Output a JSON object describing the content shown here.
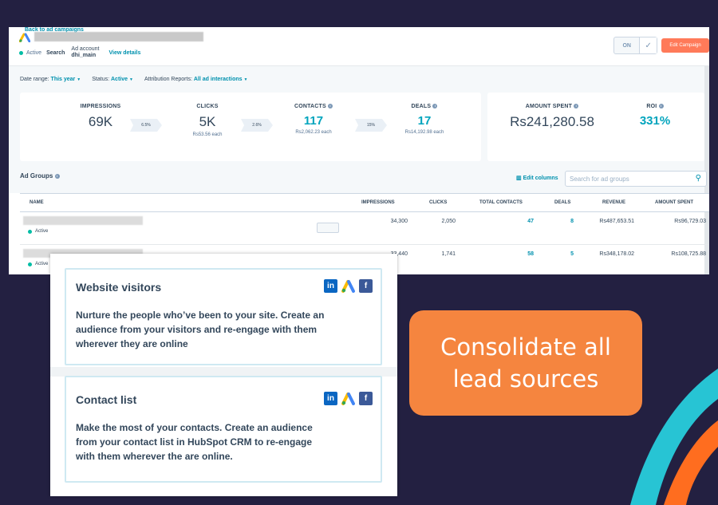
{
  "header": {
    "back_link": "Back to ad campaigns",
    "status": "Active",
    "network": "Search",
    "ad_account_label": "Ad account",
    "ad_account_value": "dhi_main",
    "view_details": "View details",
    "toggle_label": "ON",
    "edit_button": "Edit Campaign"
  },
  "filters": {
    "date_label": "Date range:",
    "date_value": "This year",
    "status_label": "Status:",
    "status_value": "Active",
    "attribution_label": "Attribution Reports:",
    "attribution_value": "All ad interactions"
  },
  "metrics": {
    "impressions": {
      "label": "IMPRESSIONS",
      "value": "69K"
    },
    "rate1": "6.5%",
    "clicks": {
      "label": "CLICKS",
      "value": "5K",
      "sub": "Rs53.56 each"
    },
    "rate2": "2.6%",
    "contacts": {
      "label": "CONTACTS",
      "value": "117",
      "sub": "Rs2,062.23 each"
    },
    "rate3": "15%",
    "deals": {
      "label": "DEALS",
      "value": "17",
      "sub": "Rs14,192.98 each"
    },
    "amount_spent": {
      "label": "AMOUNT SPENT",
      "value": "Rs241,280.58"
    },
    "roi": {
      "label": "ROI",
      "value": "331%"
    }
  },
  "ad_groups": {
    "title": "Ad Groups",
    "edit_columns": "Edit columns",
    "search_placeholder": "Search for ad groups",
    "columns": [
      "NAME",
      "IMPRESSIONS",
      "CLICKS",
      "TOTAL CONTACTS",
      "DEALS",
      "REVENUE",
      "AMOUNT SPENT"
    ],
    "rows": [
      {
        "status": "Active",
        "impressions": "34,300",
        "clicks": "2,050",
        "contacts": "47",
        "deals": "8",
        "revenue": "Rs487,653.51",
        "spent": "Rs96,729.03"
      },
      {
        "status": "Active",
        "impressions": "33,440",
        "clicks": "1,741",
        "contacts": "58",
        "deals": "5",
        "revenue": "Rs348,178.02",
        "spent": "Rs108,725.88"
      }
    ]
  },
  "audiences": [
    {
      "title": "Website visitors",
      "text": "Nurture the people who’ve been to your site. Create an audience from your visitors and re-engage with them wherever they are online"
    },
    {
      "title": "Contact list",
      "text": "Make the most of your contacts. Create an audience from your contact list in HubSpot CRM to re-engage with them wherever the are online."
    }
  ],
  "callout": {
    "line1": "Consolidate all",
    "line2": "lead sources"
  },
  "colors": {
    "background": "#232041",
    "accent_orange": "#f5853f",
    "teal": "#00a4bd",
    "swoosh_cyan": "#27c4d4",
    "swoosh_orange": "#ff6d1f"
  }
}
